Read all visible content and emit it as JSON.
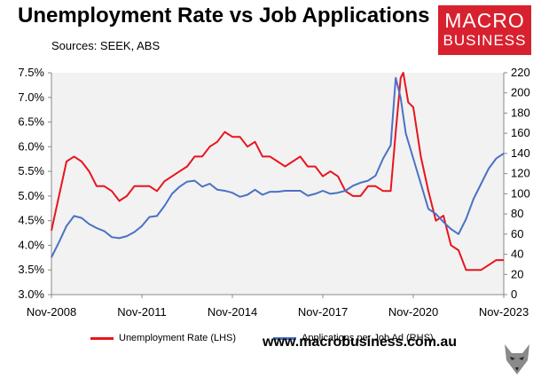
{
  "title": "Unemployment Rate vs Job Applications",
  "subtitle": "Sources: SEEK, ABS",
  "logo": {
    "line1": "MACRO",
    "line2": "BUSINESS",
    "color": "#d8212f"
  },
  "website": "www.macrobusiness.com.au",
  "chart_data": {
    "type": "line",
    "x_range": [
      "2008-11",
      "2023-11"
    ],
    "x_tick_labels": [
      "Nov-2008",
      "Nov-2011",
      "Nov-2014",
      "Nov-2017",
      "Nov-2020",
      "Nov-2023"
    ],
    "y_left": {
      "range": [
        3.0,
        7.5
      ],
      "ticks": [
        "3.0%",
        "3.5%",
        "4.0%",
        "4.5%",
        "5.0%",
        "5.5%",
        "6.0%",
        "6.5%",
        "7.0%",
        "7.5%"
      ]
    },
    "y_right": {
      "range": [
        0,
        220
      ],
      "ticks": [
        "0",
        "20",
        "40",
        "60",
        "80",
        "100",
        "120",
        "140",
        "160",
        "180",
        "200",
        "220"
      ]
    },
    "grid": false,
    "plot_background": "#f2f2f2",
    "legend_position": "bottom",
    "series": [
      {
        "name": "Unemployment Rate (LHS)",
        "axis": "left",
        "color": "#e8141d",
        "points": [
          [
            "2008-11",
            4.3
          ],
          [
            "2009-02",
            5.0
          ],
          [
            "2009-05",
            5.7
          ],
          [
            "2009-08",
            5.8
          ],
          [
            "2009-11",
            5.7
          ],
          [
            "2010-02",
            5.5
          ],
          [
            "2010-05",
            5.2
          ],
          [
            "2010-08",
            5.2
          ],
          [
            "2010-11",
            5.1
          ],
          [
            "2011-02",
            4.9
          ],
          [
            "2011-05",
            5.0
          ],
          [
            "2011-08",
            5.2
          ],
          [
            "2011-11",
            5.2
          ],
          [
            "2012-02",
            5.2
          ],
          [
            "2012-05",
            5.1
          ],
          [
            "2012-08",
            5.3
          ],
          [
            "2012-11",
            5.4
          ],
          [
            "2013-02",
            5.5
          ],
          [
            "2013-05",
            5.6
          ],
          [
            "2013-08",
            5.8
          ],
          [
            "2013-11",
            5.8
          ],
          [
            "2014-02",
            6.0
          ],
          [
            "2014-05",
            6.1
          ],
          [
            "2014-08",
            6.3
          ],
          [
            "2014-11",
            6.2
          ],
          [
            "2015-02",
            6.2
          ],
          [
            "2015-05",
            6.0
          ],
          [
            "2015-08",
            6.1
          ],
          [
            "2015-11",
            5.8
          ],
          [
            "2016-02",
            5.8
          ],
          [
            "2016-05",
            5.7
          ],
          [
            "2016-08",
            5.6
          ],
          [
            "2016-11",
            5.7
          ],
          [
            "2017-02",
            5.8
          ],
          [
            "2017-05",
            5.6
          ],
          [
            "2017-08",
            5.6
          ],
          [
            "2017-11",
            5.4
          ],
          [
            "2018-02",
            5.5
          ],
          [
            "2018-05",
            5.4
          ],
          [
            "2018-08",
            5.1
          ],
          [
            "2018-11",
            5.0
          ],
          [
            "2019-02",
            5.0
          ],
          [
            "2019-05",
            5.2
          ],
          [
            "2019-08",
            5.2
          ],
          [
            "2019-11",
            5.1
          ],
          [
            "2020-02",
            5.1
          ],
          [
            "2020-04",
            6.3
          ],
          [
            "2020-06",
            7.4
          ],
          [
            "2020-07",
            7.5
          ],
          [
            "2020-09",
            6.9
          ],
          [
            "2020-11",
            6.8
          ],
          [
            "2021-02",
            5.8
          ],
          [
            "2021-05",
            5.1
          ],
          [
            "2021-08",
            4.5
          ],
          [
            "2021-11",
            4.6
          ],
          [
            "2022-02",
            4.0
          ],
          [
            "2022-05",
            3.9
          ],
          [
            "2022-08",
            3.5
          ],
          [
            "2022-11",
            3.5
          ],
          [
            "2023-02",
            3.5
          ],
          [
            "2023-05",
            3.6
          ],
          [
            "2023-08",
            3.7
          ],
          [
            "2023-11",
            3.7
          ]
        ]
      },
      {
        "name": "Applications per Job Ad (RHS)",
        "axis": "right",
        "color": "#4a72c4",
        "points": [
          [
            "2008-11",
            37
          ],
          [
            "2009-02",
            52
          ],
          [
            "2009-05",
            68
          ],
          [
            "2009-08",
            78
          ],
          [
            "2009-11",
            76
          ],
          [
            "2010-02",
            70
          ],
          [
            "2010-05",
            66
          ],
          [
            "2010-08",
            63
          ],
          [
            "2010-11",
            57
          ],
          [
            "2011-02",
            56
          ],
          [
            "2011-05",
            58
          ],
          [
            "2011-08",
            62
          ],
          [
            "2011-11",
            68
          ],
          [
            "2012-02",
            77
          ],
          [
            "2012-05",
            78
          ],
          [
            "2012-08",
            88
          ],
          [
            "2012-11",
            100
          ],
          [
            "2013-02",
            107
          ],
          [
            "2013-05",
            112
          ],
          [
            "2013-08",
            113
          ],
          [
            "2013-11",
            107
          ],
          [
            "2014-02",
            110
          ],
          [
            "2014-05",
            104
          ],
          [
            "2014-08",
            103
          ],
          [
            "2014-11",
            101
          ],
          [
            "2015-02",
            97
          ],
          [
            "2015-05",
            99
          ],
          [
            "2015-08",
            104
          ],
          [
            "2015-11",
            99
          ],
          [
            "2016-02",
            102
          ],
          [
            "2016-05",
            102
          ],
          [
            "2016-08",
            103
          ],
          [
            "2016-11",
            103
          ],
          [
            "2017-02",
            103
          ],
          [
            "2017-05",
            98
          ],
          [
            "2017-08",
            100
          ],
          [
            "2017-11",
            103
          ],
          [
            "2018-02",
            100
          ],
          [
            "2018-05",
            101
          ],
          [
            "2018-08",
            103
          ],
          [
            "2018-11",
            108
          ],
          [
            "2019-02",
            111
          ],
          [
            "2019-05",
            113
          ],
          [
            "2019-08",
            118
          ],
          [
            "2019-11",
            135
          ],
          [
            "2020-02",
            148
          ],
          [
            "2020-04",
            215
          ],
          [
            "2020-06",
            195
          ],
          [
            "2020-08",
            160
          ],
          [
            "2020-11",
            135
          ],
          [
            "2021-02",
            110
          ],
          [
            "2021-05",
            85
          ],
          [
            "2021-08",
            80
          ],
          [
            "2021-11",
            72
          ],
          [
            "2022-02",
            65
          ],
          [
            "2022-05",
            60
          ],
          [
            "2022-08",
            75
          ],
          [
            "2022-11",
            95
          ],
          [
            "2023-02",
            110
          ],
          [
            "2023-05",
            125
          ],
          [
            "2023-08",
            135
          ],
          [
            "2023-11",
            140
          ]
        ]
      }
    ]
  }
}
